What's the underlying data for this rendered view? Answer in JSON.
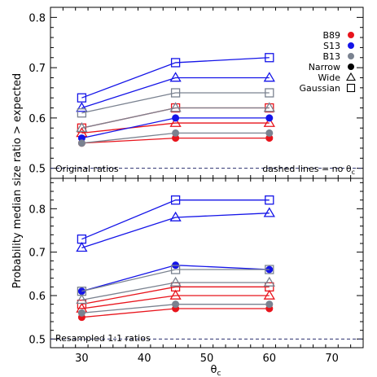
{
  "chart_data": {
    "type": "line",
    "ylabel": "Probability median size ratio > expected",
    "xlabel": "θ",
    "xlabel_subscript": "c",
    "xlim": [
      25,
      75
    ],
    "x_ticks": [
      30,
      40,
      50,
      60,
      70
    ],
    "x_minor_step": 2,
    "colors": {
      "B89": "#e8141c",
      "S13": "#1414e8",
      "B13": "#7a8290"
    },
    "legend": {
      "placement": "top-right",
      "entries": [
        {
          "label": "B89",
          "color": "#e8141c",
          "symbol": "filled-circle"
        },
        {
          "label": "S13",
          "color": "#1414e8",
          "symbol": "filled-circle"
        },
        {
          "label": "B13",
          "color": "#7a8290",
          "symbol": "filled-circle"
        },
        {
          "label": "Narrow",
          "color": "#000000",
          "symbol": "filled-circle"
        },
        {
          "label": "Wide",
          "color": "#000000",
          "symbol": "open-triangle"
        },
        {
          "label": "Gaussian",
          "color": "#000000",
          "symbol": "open-square"
        }
      ]
    },
    "panels": [
      {
        "annotation_left": "Original ratios",
        "annotation_right": "dashed lines = no θ",
        "annotation_right_subscript": "c",
        "ylim": [
          0.48,
          0.82
        ],
        "y_ticks": [
          0.5,
          0.6,
          0.7,
          0.8
        ],
        "y_minor_step": 0.02,
        "dashed_y": 0.5,
        "x": [
          30,
          45,
          60
        ],
        "series": [
          {
            "survey": "B89",
            "shape": "Narrow",
            "values": [
              0.55,
              0.56,
              0.56
            ]
          },
          {
            "survey": "B89",
            "shape": "Wide",
            "values": [
              0.57,
              0.59,
              0.59
            ]
          },
          {
            "survey": "B89",
            "shape": "Gaussian",
            "values": [
              0.58,
              0.62,
              0.62
            ]
          },
          {
            "survey": "S13",
            "shape": "Narrow",
            "values": [
              0.56,
              0.6,
              0.6
            ]
          },
          {
            "survey": "S13",
            "shape": "Wide",
            "values": [
              0.62,
              0.68,
              0.68
            ]
          },
          {
            "survey": "S13",
            "shape": "Gaussian",
            "values": [
              0.64,
              0.71,
              0.72
            ]
          },
          {
            "survey": "B13",
            "shape": "Narrow",
            "values": [
              0.55,
              0.57,
              0.57
            ]
          },
          {
            "survey": "B13",
            "shape": "Wide",
            "values": [
              0.58,
              0.62,
              0.62
            ]
          },
          {
            "survey": "B13",
            "shape": "Gaussian",
            "values": [
              0.61,
              0.65,
              0.65
            ]
          }
        ]
      },
      {
        "annotation_left": "Resampled 1:1 ratios",
        "annotation_right": "",
        "ylim": [
          0.48,
          0.87
        ],
        "y_ticks": [
          0.5,
          0.6,
          0.7,
          0.8
        ],
        "y_minor_step": 0.02,
        "dashed_y": 0.5,
        "x": [
          30,
          45,
          60
        ],
        "series": [
          {
            "survey": "B89",
            "shape": "Narrow",
            "values": [
              0.55,
              0.57,
              0.57
            ]
          },
          {
            "survey": "B89",
            "shape": "Wide",
            "values": [
              0.57,
              0.6,
              0.6
            ]
          },
          {
            "survey": "B89",
            "shape": "Gaussian",
            "values": [
              0.58,
              0.62,
              0.62
            ]
          },
          {
            "survey": "S13",
            "shape": "Narrow",
            "values": [
              0.61,
              0.67,
              0.66
            ]
          },
          {
            "survey": "S13",
            "shape": "Wide",
            "values": [
              0.71,
              0.78,
              0.79
            ]
          },
          {
            "survey": "S13",
            "shape": "Gaussian",
            "values": [
              0.73,
              0.82,
              0.82
            ]
          },
          {
            "survey": "B13",
            "shape": "Narrow",
            "values": [
              0.56,
              0.58,
              0.58
            ]
          },
          {
            "survey": "B13",
            "shape": "Wide",
            "values": [
              0.59,
              0.63,
              0.63
            ]
          },
          {
            "survey": "B13",
            "shape": "Gaussian",
            "values": [
              0.61,
              0.66,
              0.66
            ]
          }
        ]
      }
    ]
  }
}
